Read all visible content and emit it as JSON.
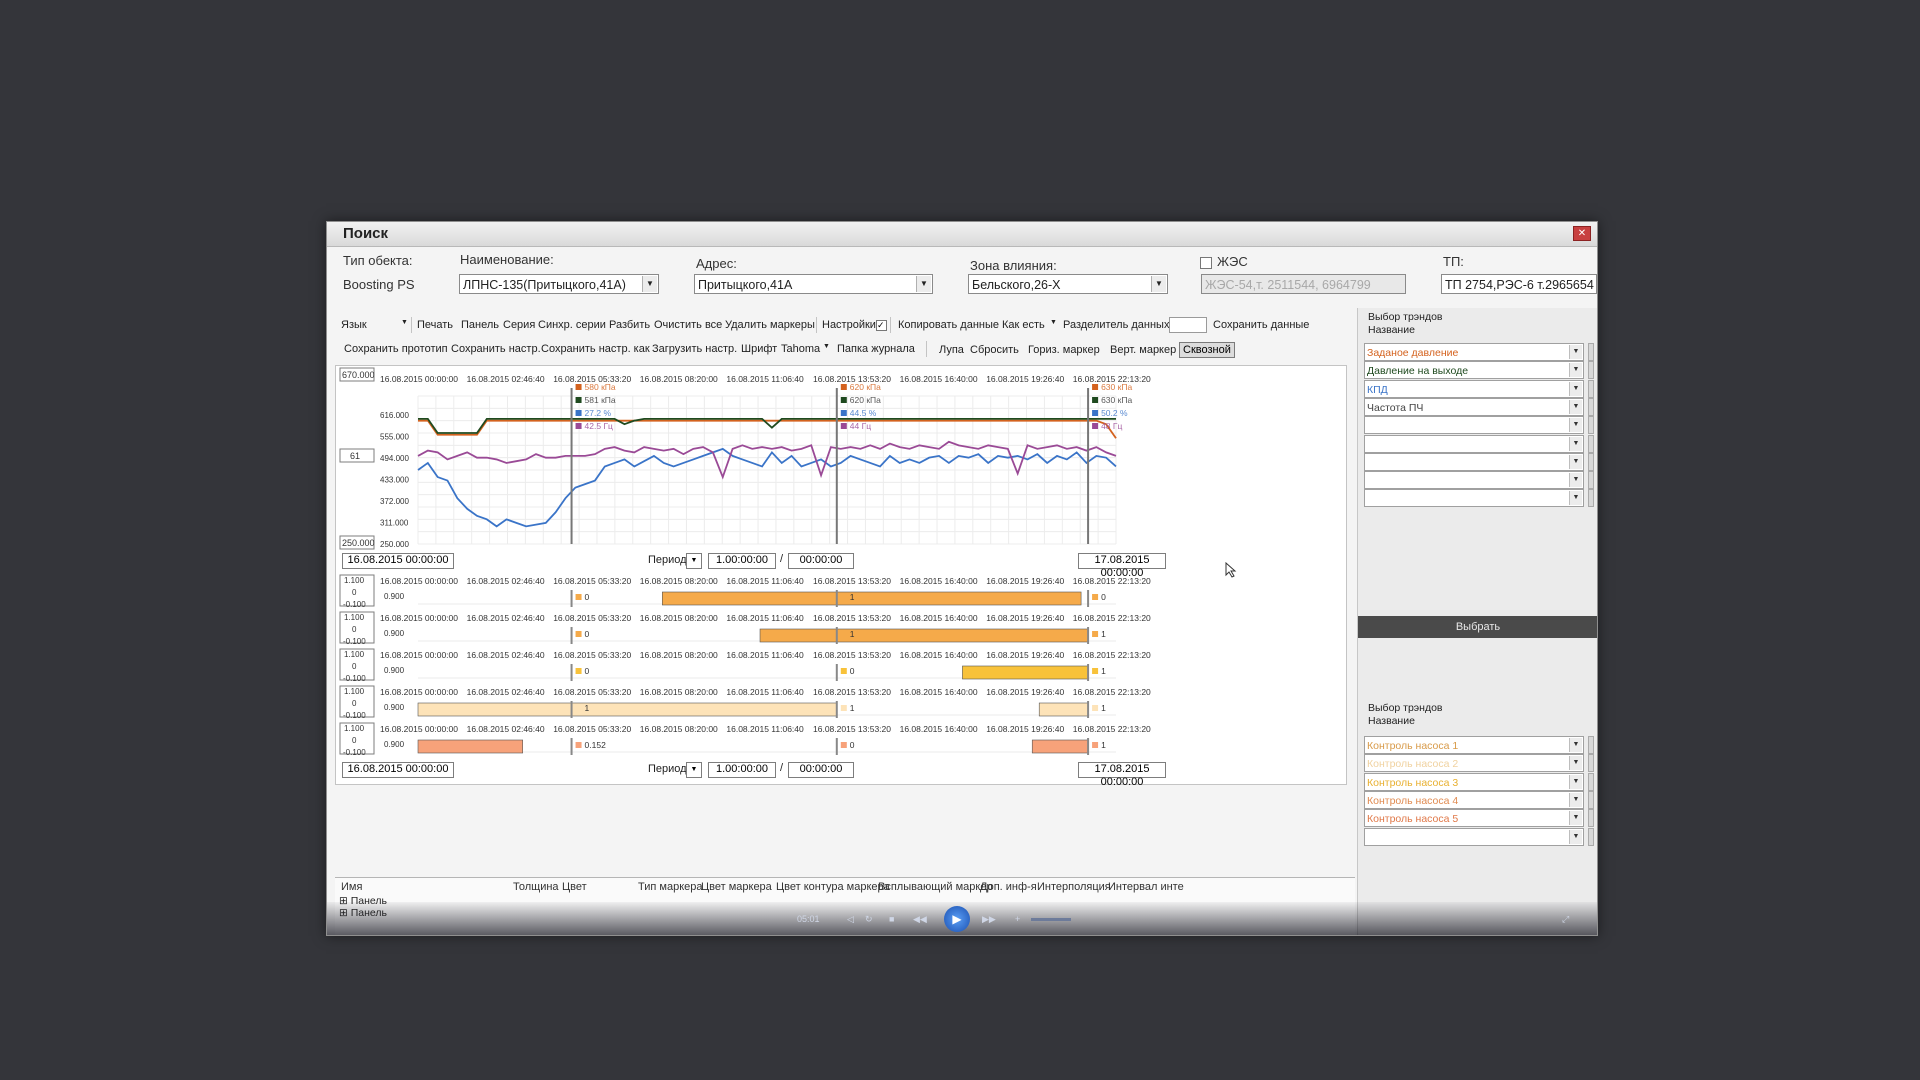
{
  "window": {
    "title": "Поиск"
  },
  "filters": {
    "type_label": "Тип обекта:",
    "type_value": "Boosting PS",
    "name_label": "Наименование:",
    "name_value": "ЛПНС-135(Притыцкого,41А)",
    "address_label": "Адрес:",
    "address_value": "Притыцкого,41А",
    "zone_label": "Зона влияния:",
    "zone_value": "Бельского,26-Х",
    "zhes_label": "ЖЭС",
    "zhes_value": "ЖЭС-54,т. 2511544, 6964799",
    "tp_label": "ТП:",
    "tp_value": "ТП 2754,РЭС-6 т.2965654"
  },
  "toolbar1": {
    "language": "Язык",
    "print": "Печать",
    "panel": "Панель",
    "series": "Серия",
    "sync": "Синхр. серии",
    "split": "Разбить",
    "clear_all": "Очистить все",
    "delete_markers": "Удалить маркеры",
    "settings": "Настройки",
    "copy_data": "Копировать данные",
    "as_is": "Как есть",
    "separator": "Разделитель данных",
    "save_data": "Сохранить данные"
  },
  "toolbar2": {
    "save_proto": "Сохранить прототип",
    "save_settings": "Сохранить настр.",
    "save_settings_as": "Сохранить настр. как",
    "load_settings": "Загрузить настр.",
    "font": "Шрифт",
    "font_name": "Tahoma",
    "log_folder": "Папка журнала",
    "magnifier": "Лупа",
    "reset": "Сбросить",
    "horiz_marker": "Гориз. маркер",
    "vert_marker": "Верт. маркер",
    "through": "Сквозной"
  },
  "colors": {
    "orange": "#d4621e",
    "green": "#1f4a1f",
    "blue": "#3a74c8",
    "purple": "#9a4a96",
    "bar_orange": "#f5aa4a",
    "bar_yellow": "#f8c23a",
    "bar_cream": "#fde3b8",
    "bar_salmon": "#f7a27a"
  },
  "time_ticks": [
    "16.08.2015 00:00:00",
    "16.08.2015 02:46:40",
    "16.08.2015 05:33:20",
    "16.08.2015 08:20:00",
    "16.08.2015 11:06:40",
    "16.08.2015 13:53:20",
    "16.08.2015 16:40:00",
    "16.08.2015 19:26:40",
    "16.08.2015 22:13:20"
  ],
  "period": {
    "label": "Период",
    "value": "1.00:00:00",
    "offset": "00:00:00",
    "start": "16.08.2015 00:00:00",
    "end": "17.08.2015 00:00:00"
  },
  "chart_data": [
    {
      "type": "line",
      "ylim": [
        250,
        670
      ],
      "y_top_label": "670.000",
      "y_bottom_label": "250.000",
      "y_cursor_value": "61",
      "y_ticks": [
        "616.000",
        "555.000",
        "494.000",
        "433.000",
        "372.000",
        "311.000",
        "250.000"
      ],
      "series": [
        {
          "values": [
            600,
            600,
            560,
            560,
            560,
            560,
            560,
            600,
            600,
            600,
            600,
            600,
            600,
            600,
            600,
            600,
            600,
            600,
            600,
            600,
            600,
            600,
            600,
            600,
            600,
            600,
            600,
            600,
            600,
            600,
            600,
            600,
            600,
            600,
            600,
            600,
            600,
            600,
            600,
            600,
            600,
            600,
            600,
            600,
            600,
            600,
            600,
            600,
            600,
            600,
            600,
            600,
            600,
            600,
            600,
            600,
            600,
            600,
            600,
            600,
            600,
            600,
            600,
            600,
            600,
            600,
            600,
            600,
            600,
            600,
            590,
            550
          ]
        },
        {
          "values": [
            605,
            605,
            565,
            565,
            565,
            565,
            565,
            605,
            605,
            605,
            605,
            605,
            605,
            605,
            605,
            605,
            605,
            605,
            605,
            605,
            605,
            590,
            600,
            605,
            605,
            605,
            605,
            605,
            605,
            605,
            605,
            605,
            605,
            605,
            605,
            605,
            580,
            605,
            605,
            605,
            605,
            605,
            605,
            605,
            605,
            605,
            605,
            605,
            605,
            605,
            605,
            605,
            605,
            605,
            605,
            605,
            605,
            605,
            605,
            605,
            605,
            605,
            605,
            605,
            605,
            605,
            605,
            605,
            605,
            605,
            605,
            605
          ]
        },
        {
          "values": [
            460,
            480,
            440,
            430,
            380,
            350,
            330,
            320,
            300,
            320,
            310,
            300,
            305,
            310,
            340,
            380,
            410,
            420,
            430,
            470,
            480,
            490,
            470,
            485,
            500,
            480,
            470,
            480,
            490,
            500,
            510,
            520,
            500,
            490,
            480,
            470,
            510,
            480,
            500,
            470,
            480,
            490,
            470,
            480,
            500,
            490,
            480,
            470,
            500,
            480,
            490,
            480,
            495,
            500,
            480,
            500,
            495,
            505,
            480,
            500,
            495,
            500,
            490,
            505,
            480,
            500,
            490,
            510,
            480,
            500,
            495,
            470
          ]
        },
        {
          "values": [
            500,
            515,
            510,
            490,
            500,
            510,
            495,
            495,
            490,
            480,
            485,
            490,
            505,
            495,
            495,
            500,
            500,
            500,
            505,
            520,
            525,
            515,
            510,
            525,
            520,
            515,
            520,
            505,
            520,
            525,
            510,
            440,
            520,
            530,
            520,
            525,
            520,
            525,
            515,
            520,
            530,
            445,
            525,
            520,
            525,
            520,
            530,
            520,
            535,
            525,
            520,
            530,
            525,
            520,
            540,
            530,
            525,
            520,
            530,
            525,
            520,
            450,
            530,
            520,
            525,
            530,
            520,
            525,
            515,
            525,
            510,
            500
          ]
        }
      ],
      "marker_cursor_1": {
        "values": [
          "580 кПа",
          "581 кПа",
          "27.2 %",
          "42.5 Гц"
        ]
      },
      "marker_cursor_2": {
        "values": [
          "620 кПа",
          "620 кПа",
          "44.5 %",
          "44 Гц"
        ]
      },
      "marker_cursor_3": {
        "values": [
          "630 кПа",
          "630 кПа",
          "50.2 %",
          "48 Гц"
        ]
      },
      "cursor_times": [
        0.22,
        0.6,
        0.96
      ]
    },
    {
      "type": "bar",
      "name_hidden": true,
      "strips": [
        {
          "yscale": [
            "1.100",
            "0",
            "-0.100"
          ],
          "level_label": "0.900",
          "segments": [
            [
              0.35,
              0.95
            ]
          ],
          "color": "#f5aa4a",
          "cursor_values": [
            "0",
            "1",
            "0"
          ]
        },
        {
          "yscale": [
            "1.100",
            "0",
            "-0.100"
          ],
          "level_label": "0.900",
          "segments": [
            [
              0.49,
              0.96
            ]
          ],
          "color": "#f5aa4a",
          "cursor_values": [
            "0",
            "1",
            "1"
          ]
        },
        {
          "yscale": [
            "1.100",
            "0",
            "-0.100"
          ],
          "level_label": "0.900",
          "segments": [
            [
              0.78,
              0.96
            ]
          ],
          "color": "#f8c23a",
          "cursor_values": [
            "0",
            "0",
            "1"
          ]
        },
        {
          "yscale": [
            "1.100",
            "0",
            "-0.100"
          ],
          "level_label": "0.900",
          "segments": [
            [
              0.0,
              0.6
            ],
            [
              0.89,
              0.96
            ]
          ],
          "color": "#fde3b8",
          "cursor_values": [
            "1",
            "1",
            "1"
          ]
        },
        {
          "yscale": [
            "1.100",
            "0",
            "-0.100"
          ],
          "level_label": "0.900",
          "segments": [
            [
              0.0,
              0.15
            ],
            [
              0.88,
              0.96
            ]
          ],
          "color": "#f7a27a",
          "cursor_values": [
            "0.152",
            "0",
            "1"
          ]
        }
      ]
    }
  ],
  "right_panel": {
    "section1_title": "Выбор трэндов",
    "section1_sub": "Название",
    "trends": [
      "Заданое давление",
      "Давление на выходе",
      "КПД",
      "Частота ПЧ",
      "",
      "",
      "",
      "",
      ""
    ],
    "trend_colors": [
      "#d4621e",
      "#1f4a1f",
      "#3a74c8",
      "#444444",
      "#444",
      "#444",
      "#444",
      "#444",
      "#444"
    ],
    "select_button": "Выбрать",
    "section2_title": "Выбор трэндов",
    "section2_sub": "Название",
    "trends2": [
      "Контроль насоса 1",
      "Контроль насоса 2",
      "Контроль насоса 3",
      "Контроль насоса 4",
      "Контроль насоса 5",
      ""
    ],
    "trend2_colors": [
      "#d89a48",
      "#f0d2a0",
      "#e8b030",
      "#e08a50",
      "#e07848",
      "#444"
    ]
  },
  "grid": {
    "headers": [
      "Имя",
      "Толщина",
      "Цвет",
      "Тип маркера",
      "Цвет маркера",
      "Цвет контура маркера",
      "Всплывающий маркер",
      "Доп. инф-я",
      "Интерполяция",
      "Интервал инте"
    ],
    "rows": [
      "Панель",
      "Панель"
    ]
  },
  "player": {
    "time": "05:01"
  }
}
